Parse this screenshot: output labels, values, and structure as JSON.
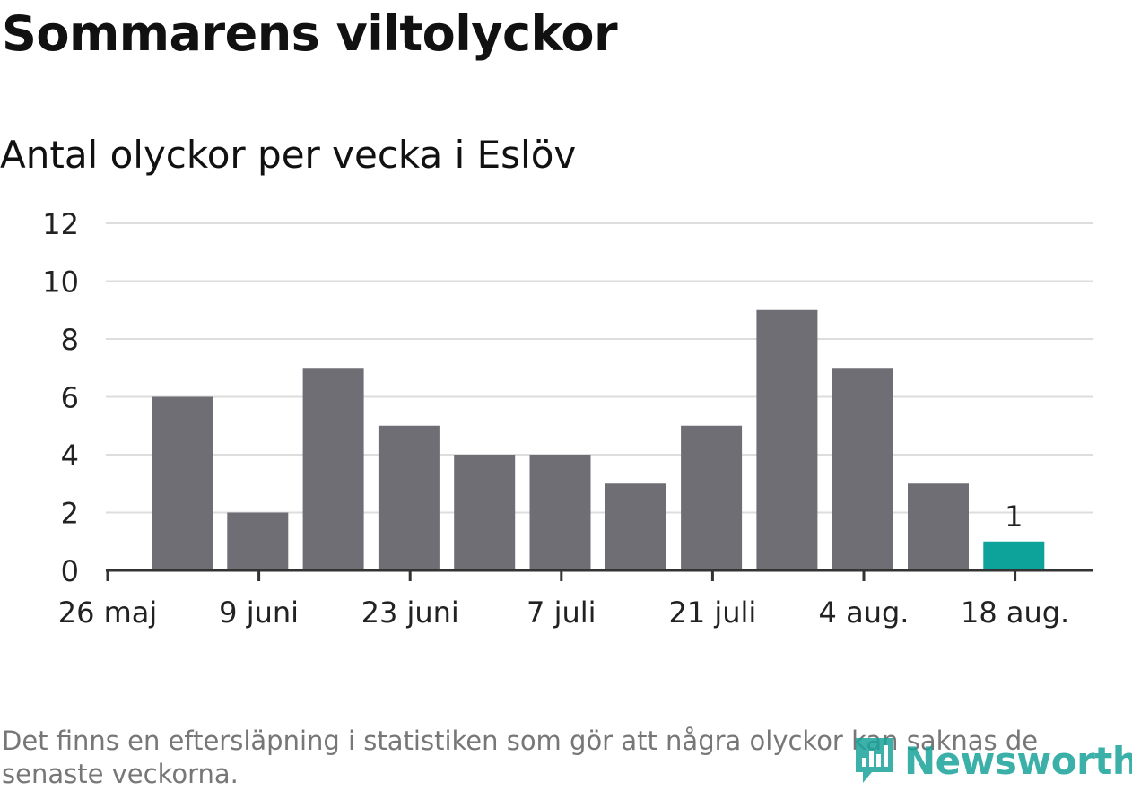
{
  "header": {
    "title": "Sommarens viltolyckor",
    "subtitle": "Antal olyckor per vecka i Eslöv"
  },
  "footer": {
    "note": "Det finns en eftersläpning i statistiken som gör att några olyckor kan saknas de senaste veckorna.",
    "logo_text": "Newsworthy",
    "logo_icon": "newsworthy-logo-icon"
  },
  "colors": {
    "bar": "#6f6e75",
    "highlight": "#0da39a",
    "grid": "#dddddd",
    "axis": "#333333",
    "logo": "#1aa39a"
  },
  "chart_data": {
    "type": "bar",
    "x": [
      "2019-05-27",
      "2019-06-03",
      "2019-06-10",
      "2019-06-17",
      "2019-06-24",
      "2019-07-01",
      "2019-07-08",
      "2019-07-15",
      "2019-07-22",
      "2019-07-29",
      "2019-08-05",
      "2019-08-12"
    ],
    "values": [
      6,
      2,
      7,
      5,
      4,
      4,
      3,
      5,
      9,
      7,
      3,
      1
    ],
    "highlight_last": true,
    "data_labels": [
      {
        "index": 11,
        "text": "1"
      }
    ],
    "ylim": [
      0,
      12
    ],
    "yticks": [
      "0",
      "2",
      "4",
      "6",
      "8",
      "10",
      "12"
    ],
    "xtick_labels": [
      "26 maj",
      "9 juni",
      "23 juni",
      "7 juli",
      "21 juli",
      "4 aug.",
      "18 aug."
    ],
    "xlabel": "",
    "ylabel": "",
    "grid": true
  }
}
